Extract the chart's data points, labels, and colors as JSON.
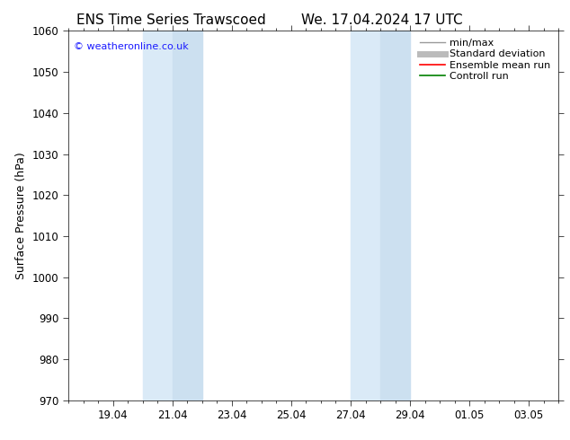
{
  "title_left": "ENS Time Series Trawscoed",
  "title_right": "We. 17.04.2024 17 UTC",
  "ylabel": "Surface Pressure (hPa)",
  "ylim": [
    970,
    1060
  ],
  "yticks": [
    970,
    980,
    990,
    1000,
    1010,
    1020,
    1030,
    1040,
    1050,
    1060
  ],
  "xlim_start": "2024-04-17 12:00",
  "xlim_end": "2024-05-04 00:00",
  "xtick_dates": [
    "2024-04-19",
    "2024-04-21",
    "2024-04-23",
    "2024-04-25",
    "2024-04-27",
    "2024-04-29",
    "2024-05-01",
    "2024-05-03"
  ],
  "xtick_labels": [
    "19.04",
    "21.04",
    "23.04",
    "25.04",
    "27.04",
    "29.04",
    "01.05",
    "03.05"
  ],
  "weekend_bands": [
    {
      "sat_start": "2024-04-20",
      "sat_end": "2024-04-21",
      "sun_start": "2024-04-21",
      "sun_end": "2024-04-22"
    },
    {
      "sat_start": "2024-04-27",
      "sat_end": "2024-04-28",
      "sun_start": "2024-04-28",
      "sun_end": "2024-04-29"
    }
  ],
  "weekend_color_outer": "#daeaf7",
  "weekend_color_inner": "#cce0f0",
  "background_color": "#ffffff",
  "watermark_text": "© weatheronline.co.uk",
  "watermark_color": "#1a1aff",
  "legend_items": [
    {
      "label": "min/max",
      "color": "#999999",
      "lw": 1.0,
      "style": "-"
    },
    {
      "label": "Standard deviation",
      "color": "#bbbbbb",
      "lw": 5,
      "style": "-"
    },
    {
      "label": "Ensemble mean run",
      "color": "#ff0000",
      "lw": 1.2,
      "style": "-"
    },
    {
      "label": "Controll run",
      "color": "#008000",
      "lw": 1.2,
      "style": "-"
    }
  ],
  "title_fontsize": 11,
  "tick_fontsize": 8.5,
  "label_fontsize": 9,
  "watermark_fontsize": 8,
  "legend_fontsize": 8
}
